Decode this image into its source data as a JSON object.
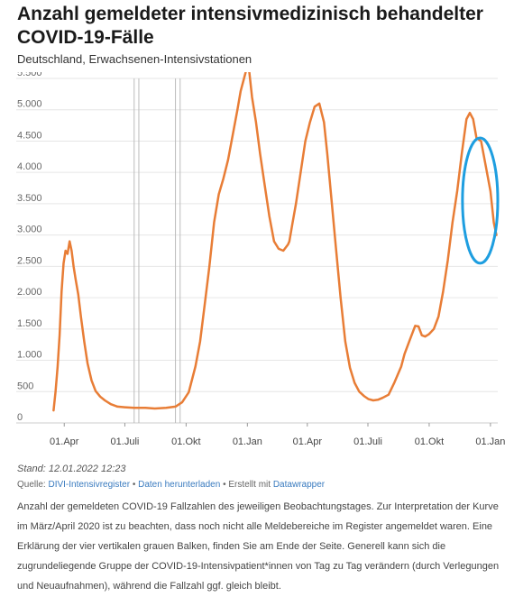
{
  "header": {
    "title": "Anzahl gemeldeter intensivmedizinisch behandelter COVID-19-Fälle",
    "subtitle": "Deutschland, Erwachsenen-Intensivstationen"
  },
  "footer": {
    "stand": "Stand: 12.01.2022 12:23",
    "source_prefix": "Quelle: ",
    "source_link": "DIVI-Intensivregister",
    "sep1": " • ",
    "download_link": "Daten herunterladen",
    "sep2": " • Erstellt mit ",
    "tool_link": "Datawrapper",
    "note": "Anzahl der gemeldeten COVID-19 Fallzahlen des jeweiligen Beobachtungstages. Zur Interpretation der Kurve im März/April 2020 ist zu beachten, dass noch nicht alle Meldebereiche im Register angemeldet waren. Eine Erklärung der vier vertikalen grauen Balken, finden Sie am Ende der Seite. Generell kann sich die zugrundeliegende Gruppe der COVID-19-Intensivpatient*innen von Tag zu Tag verändern (durch Verlegungen und Neuaufnahmen), während die Fallzahl ggf. gleich bleibt."
  },
  "colors": {
    "line": "#e87d36",
    "annotation": "#1e9ee0",
    "grid": "#e6e6e6",
    "marker": "#bbbbbb"
  },
  "chart_data": {
    "type": "line",
    "title": "Anzahl gemeldeter intensivmedizinisch behandelter COVID-19-Fälle",
    "subtitle": "Deutschland, Erwachsenen-Intensivstationen",
    "xlabel": "",
    "ylabel": "",
    "ylim": [
      0,
      5500
    ],
    "yticks": [
      0,
      500,
      1000,
      1500,
      2000,
      2500,
      3000,
      3500,
      4000,
      4500,
      5000,
      5500
    ],
    "ytick_labels": [
      "0",
      "500",
      "1.000",
      "1.500",
      "2.000",
      "2.500",
      "3.000",
      "3.500",
      "4.000",
      "4.500",
      "5.000",
      "5.500"
    ],
    "xlim": [
      "2020-03-10",
      "2022-01-12"
    ],
    "xticks": [
      "2020-04-01",
      "2020-07-01",
      "2020-10-01",
      "2021-01-01",
      "2021-04-01",
      "2021-07-01",
      "2021-10-01",
      "2022-01-01"
    ],
    "xtick_labels": [
      "01.Apr",
      "01.Juli",
      "01.Okt",
      "01.Jan",
      "01.Apr",
      "01.Juli",
      "01.Okt",
      "01.Jan"
    ],
    "grid": true,
    "vertical_markers": [
      "2020-07-15",
      "2020-07-22",
      "2020-09-15",
      "2020-09-22"
    ],
    "annotation": {
      "type": "ellipse",
      "from": "2021-11-20",
      "to": "2022-01-12",
      "ymin": 2550,
      "ymax": 4550
    },
    "series": [
      {
        "x": [
          "2020-03-16",
          "2020-03-19",
          "2020-03-22",
          "2020-03-25",
          "2020-03-28",
          "2020-03-31",
          "2020-04-03",
          "2020-04-06",
          "2020-04-09",
          "2020-04-12",
          "2020-04-15",
          "2020-04-18",
          "2020-04-22",
          "2020-04-26",
          "2020-05-01",
          "2020-05-06",
          "2020-05-12",
          "2020-05-18",
          "2020-05-25",
          "2020-06-01",
          "2020-06-10",
          "2020-06-20",
          "2020-07-01",
          "2020-07-15",
          "2020-08-01",
          "2020-08-15",
          "2020-09-01",
          "2020-09-15",
          "2020-09-25",
          "2020-10-05",
          "2020-10-15",
          "2020-10-22",
          "2020-10-29",
          "2020-11-05",
          "2020-11-12",
          "2020-11-19",
          "2020-11-26",
          "2020-12-03",
          "2020-12-10",
          "2020-12-17",
          "2020-12-22",
          "2020-12-27",
          "2021-01-01",
          "2021-01-04",
          "2021-01-08",
          "2021-01-14",
          "2021-01-20",
          "2021-01-27",
          "2021-02-03",
          "2021-02-10",
          "2021-02-17",
          "2021-02-24",
          "2021-03-03",
          "2021-03-05",
          "2021-03-10",
          "2021-03-15",
          "2021-03-22",
          "2021-03-29",
          "2021-04-05",
          "2021-04-12",
          "2021-04-19",
          "2021-04-26",
          "2021-05-01",
          "2021-05-07",
          "2021-05-14",
          "2021-05-21",
          "2021-05-28",
          "2021-06-04",
          "2021-06-11",
          "2021-06-18",
          "2021-06-25",
          "2021-07-02",
          "2021-07-09",
          "2021-07-16",
          "2021-07-23",
          "2021-08-01",
          "2021-08-10",
          "2021-08-20",
          "2021-08-25",
          "2021-09-01",
          "2021-09-10",
          "2021-09-15",
          "2021-09-20",
          "2021-09-25",
          "2021-10-01",
          "2021-10-08",
          "2021-10-15",
          "2021-10-22",
          "2021-10-29",
          "2021-11-05",
          "2021-11-12",
          "2021-11-19",
          "2021-11-26",
          "2021-12-01",
          "2021-12-06",
          "2021-12-11",
          "2021-12-18",
          "2021-12-25",
          "2022-01-01",
          "2022-01-06",
          "2022-01-10"
        ],
        "values": [
          200,
          500,
          900,
          1400,
          2100,
          2550,
          2750,
          2700,
          2900,
          2750,
          2500,
          2300,
          2050,
          1700,
          1300,
          950,
          680,
          510,
          420,
          360,
          300,
          260,
          250,
          240,
          240,
          230,
          240,
          260,
          330,
          490,
          900,
          1300,
          1900,
          2500,
          3200,
          3650,
          3900,
          4200,
          4600,
          5000,
          5300,
          5500,
          5700,
          5600,
          5200,
          4800,
          4300,
          3800,
          3300,
          2900,
          2780,
          2750,
          2850,
          2900,
          3200,
          3500,
          4000,
          4500,
          4800,
          5050,
          5100,
          4800,
          4300,
          3600,
          2800,
          2000,
          1300,
          880,
          640,
          500,
          430,
          380,
          360,
          370,
          400,
          450,
          650,
          900,
          1100,
          1300,
          1550,
          1540,
          1400,
          1380,
          1420,
          1500,
          1700,
          2100,
          2600,
          3200,
          3700,
          4300,
          4850,
          4950,
          4850,
          4550,
          4500,
          4100,
          3700,
          3200,
          3000
        ]
      }
    ]
  }
}
